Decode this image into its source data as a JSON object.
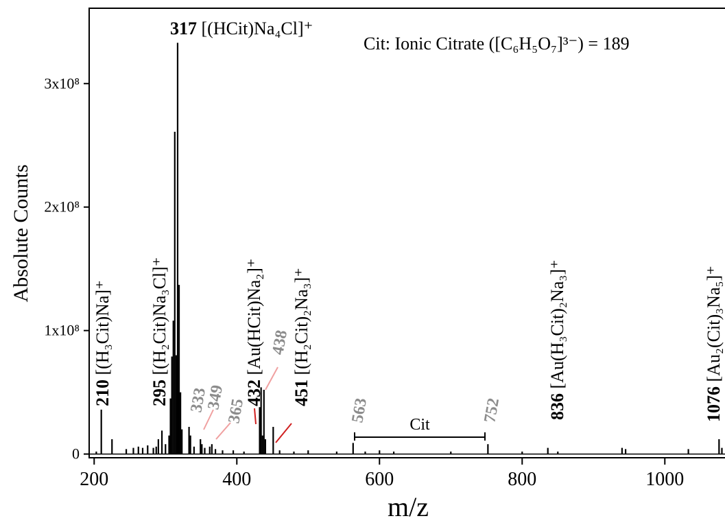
{
  "chart_data": {
    "type": "stick",
    "x_label": "m/z",
    "y_label": "Absolute Counts",
    "color": "#000000",
    "x": [
      203,
      210,
      225,
      245,
      255,
      262,
      268,
      275,
      283,
      287,
      290,
      295,
      300,
      305,
      307,
      309,
      311,
      313,
      315,
      317,
      319,
      321,
      323,
      333,
      335,
      340,
      349,
      351,
      355,
      362,
      365,
      370,
      380,
      395,
      410,
      432,
      434,
      436,
      438,
      440,
      451,
      460,
      480,
      500,
      540,
      563,
      580,
      600,
      620,
      700,
      752,
      800,
      836,
      850,
      940,
      945,
      1033,
      1076,
      1080
    ],
    "values": [
      2000000,
      36000000,
      12000000,
      4000000,
      5000000,
      6000000,
      5000000,
      7000000,
      5000000,
      6000000,
      12000000,
      19000000,
      8000000,
      15000000,
      45000000,
      79000000,
      108000000,
      261000000,
      80000000,
      333000000,
      137000000,
      50000000,
      20000000,
      22000000,
      15000000,
      6000000,
      12000000,
      8000000,
      5000000,
      6000000,
      8000000,
      4000000,
      3000000,
      3000000,
      2000000,
      38000000,
      54000000,
      15000000,
      52000000,
      12000000,
      22000000,
      3000000,
      2000000,
      3000000,
      2000000,
      9000000,
      2000000,
      3000000,
      2000000,
      2000000,
      8000000,
      2000000,
      5000000,
      2000000,
      5000000,
      4000000,
      4000000,
      12000000,
      5000000
    ],
    "xlim": [
      193,
      1085
    ],
    "ylim": [
      -3000000,
      361000000
    ],
    "xticks": [
      200,
      400,
      600,
      800,
      1000
    ],
    "yticks": [
      0,
      {
        "value": 100000000,
        "label": "1x10⁸"
      },
      {
        "value": 200000000,
        "label": "2x10⁸"
      },
      {
        "value": 300000000,
        "label": "3x10⁸"
      }
    ],
    "annotations": [
      {
        "mz": "317",
        "formula": "[(HCit)Na₄Cl]⁺"
      },
      {
        "mz": "210",
        "formula": "[(H₃Cit)Na]⁺"
      },
      {
        "mz": "295",
        "formula": "[(H₂Cit)Na₃Cl]⁺"
      },
      {
        "mz": "432",
        "formula": "[Au(HCit)Na₂]⁺"
      },
      {
        "mz": "451",
        "formula": "[(H₂Cit)₂Na₃]⁺"
      },
      {
        "mz": "836",
        "formula": "[Au(H₃Cit)₂Na₃]⁺"
      },
      {
        "mz": "1076",
        "formula": "[Au₂(Cit)₃Na₅]⁺"
      }
    ],
    "minor_labels": [
      "333",
      "349",
      "365",
      "438",
      "563",
      "752"
    ],
    "note": "Cit: Ionic Citrate ([C₆H₅O₇]³⁻) = 189",
    "bracket_label": "Cit"
  }
}
